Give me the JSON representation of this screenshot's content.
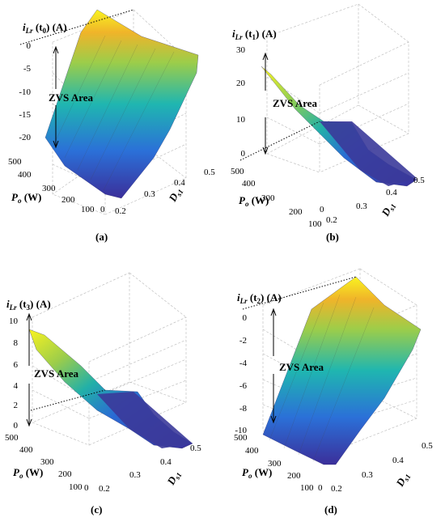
{
  "charts": [
    {
      "id": "a",
      "caption": "(a)",
      "z_title": "iLr (t0) (A)",
      "z_title_main": "i",
      "z_title_sub": "Lr",
      "z_title_rest_pre": " (t",
      "z_title_rest_sub": "0",
      "z_title_rest_post": ") (A)",
      "ztick_labels": [
        "0",
        "-5",
        "-10",
        "-15",
        "-20"
      ],
      "ptick_labels": [
        "500",
        "400",
        "300",
        "200",
        "100",
        "0"
      ],
      "dtick_labels": [
        "0.2",
        "0.3",
        "0.4",
        "0.5"
      ],
      "xlabel_main": "P",
      "xlabel_sub": "o",
      "xlabel_rest": " (W)",
      "ylabel_main": "D",
      "ylabel_sub": "s1",
      "annotation": "ZVS Area"
    },
    {
      "id": "b",
      "caption": "(b)",
      "z_title_main": "i",
      "z_title_sub": "Lr",
      "z_title_rest_pre": " (t",
      "z_title_rest_sub": "1",
      "z_title_rest_post": ") (A)",
      "ztick_labels": [
        "30",
        "20",
        "10",
        "0"
      ],
      "ptick_labels": [
        "500",
        "400",
        "300",
        "200",
        "100",
        "0"
      ],
      "dtick_labels": [
        "0.2",
        "0.3",
        "0.4",
        "0.5"
      ],
      "xlabel_main": "P",
      "xlabel_sub": "o",
      "xlabel_rest": " (W)",
      "ylabel_main": "D",
      "ylabel_sub": "s1",
      "annotation": "ZVS Area"
    },
    {
      "id": "c",
      "caption": "(c)",
      "z_title_main": "i",
      "z_title_sub": "Lr",
      "z_title_rest_pre": " (t",
      "z_title_rest_sub": "3",
      "z_title_rest_post": ") (A)",
      "ztick_labels": [
        "10",
        "8",
        "6",
        "4",
        "2",
        "0"
      ],
      "ptick_labels": [
        "500",
        "400",
        "300",
        "200",
        "100",
        "0"
      ],
      "dtick_labels": [
        "0.2",
        "0.3",
        "0.4",
        "0.5"
      ],
      "xlabel_main": "P",
      "xlabel_sub": "o",
      "xlabel_rest": " (W)",
      "ylabel_main": "D",
      "ylabel_sub": "s1",
      "annotation": "ZVS Area"
    },
    {
      "id": "d",
      "caption": "(d)",
      "z_title_main": "i",
      "z_title_sub": "Lr",
      "z_title_rest_pre": " (t",
      "z_title_rest_sub": "2",
      "z_title_rest_post": ") (A)",
      "ztick_labels": [
        "0",
        "-2",
        "-4",
        "-6",
        "-8",
        "-10"
      ],
      "ptick_labels": [
        "500",
        "400",
        "300",
        "200",
        "100",
        "0"
      ],
      "dtick_labels": [
        "0.2",
        "0.3",
        "0.4",
        "0.5"
      ],
      "xlabel_main": "P",
      "xlabel_sub": "o",
      "xlabel_rest": " (W)",
      "ylabel_main": "D",
      "ylabel_sub": "s1",
      "annotation": "ZVS Area"
    }
  ],
  "chart_data": [
    {
      "type": "surface",
      "caption": "(a)",
      "x_axis": "Po (W)",
      "x_range": [
        0,
        500
      ],
      "y_axis": "Ds1",
      "y_range": [
        0.2,
        0.5
      ],
      "z_axis": "iLr (t0) (A)",
      "z_range": [
        -22,
        0
      ],
      "z_corners": {
        "Po0_D0.2": -22,
        "Po500_D0.2": -20,
        "Po0_D0.5": 0,
        "Po500_D0.5": 0
      },
      "zvs_region": "iLr < 0"
    },
    {
      "type": "surface",
      "caption": "(b)",
      "x_axis": "Po (W)",
      "x_range": [
        0,
        500
      ],
      "y_axis": "Ds1",
      "y_range": [
        0.2,
        0.5
      ],
      "z_axis": "iLr (t1) (A)",
      "z_range": [
        0,
        30
      ],
      "z_corners": {
        "Po500_D0.2": 25,
        "Po0_D0.2": 0,
        "Po500_D0.5": 0,
        "Po0_D0.5": 0
      },
      "zvs_region": "iLr > 0"
    },
    {
      "type": "surface",
      "caption": "(c)",
      "x_axis": "Po (W)",
      "x_range": [
        0,
        500
      ],
      "y_axis": "Ds1",
      "y_range": [
        0.2,
        0.5
      ],
      "z_axis": "iLr (t3) (A)",
      "z_range": [
        0,
        10
      ],
      "z_corners": {
        "Po500_D0.2": 8.5,
        "Po0_D0.2": 0,
        "Po500_D0.5": 0,
        "Po0_D0.5": 0
      },
      "zvs_region": "iLr > 0"
    },
    {
      "type": "surface",
      "caption": "(d)",
      "x_axis": "Po (W)",
      "x_range": [
        0,
        500
      ],
      "y_axis": "Ds1",
      "y_range": [
        0.2,
        0.5
      ],
      "z_axis": "iLr (t2) (A)",
      "z_range": [
        -10,
        0
      ],
      "z_corners": {
        "Po0_D0.2": -10,
        "Po500_D0.2": -8.5,
        "Po0_D0.5": 0,
        "Po500_D0.5": 0
      },
      "zvs_region": "iLr < 0"
    }
  ]
}
